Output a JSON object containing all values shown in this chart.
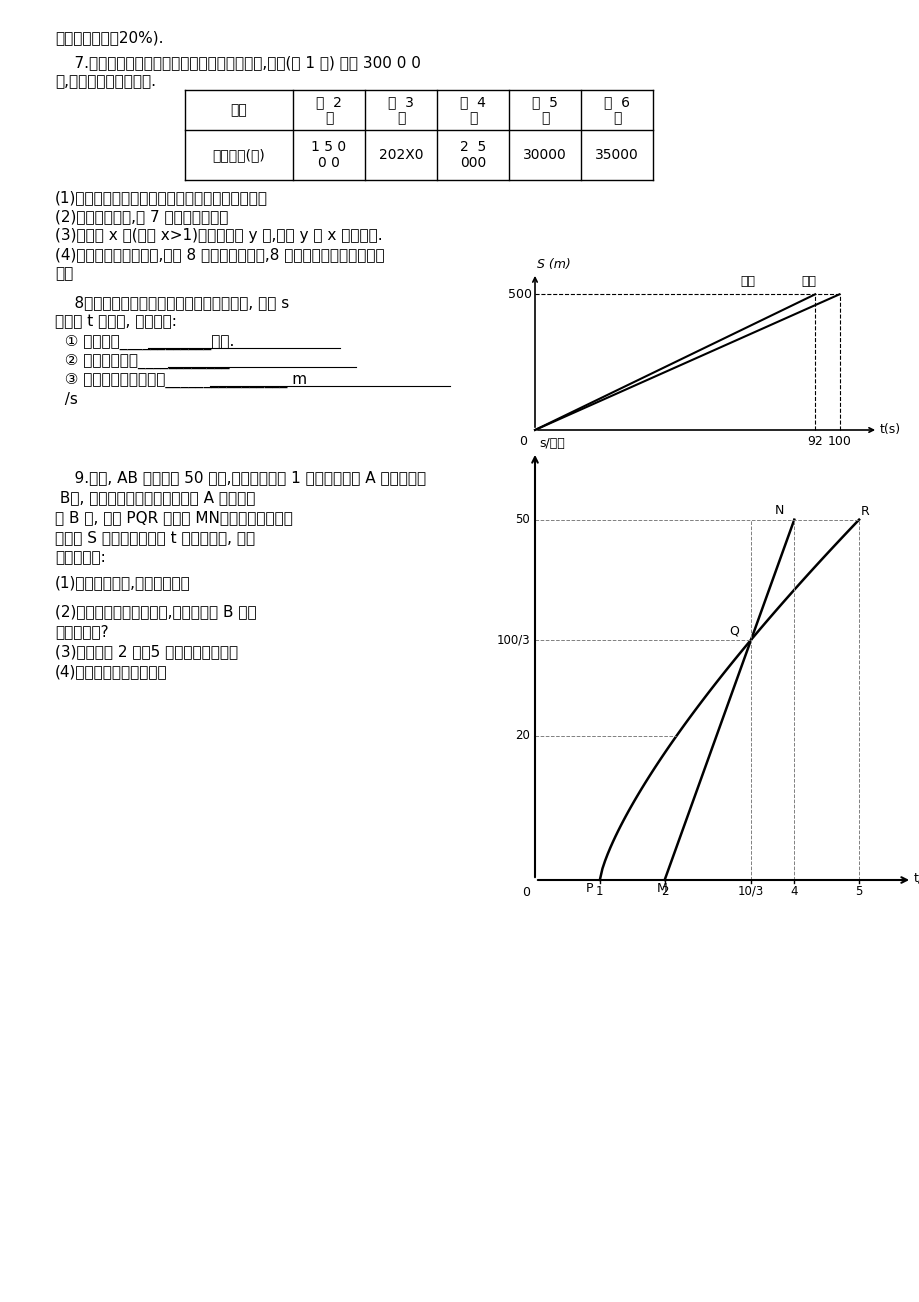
{
  "bg_color": "#ffffff",
  "line1": "要交纳所得税的20%).",
  "q7_line1": "    7.某居民小区按照分期付款的方式售房购房时,首期(第 1 年) 付款 300 0 0",
  "q7_line2": "元,以后每年付款如下表.",
  "table_header": [
    "年份",
    "第  2\n年",
    "第  3\n年",
    "第  4\n年",
    "第  5\n年",
    "第  6\n年"
  ],
  "table_row1": [
    "交付房款(元)",
    "1 5 0\n0 0",
    "202X0",
    "2  5\n000",
    "30000",
    "35000"
  ],
  "q7_sub1": "(1)上表反映了哪两个变量之间的关系哪个是自变量",
  "q7_sub2": "(2)根据表格推测,第 7 年应付款多少元",
  "q7_sub3": "(3)如果第 x 年(其中 x>1)应付房款为 y 元,写出 y 与 x 的关系式.",
  "q7_sub4": "(4)小明家购得一套住房,到第 8 年恰好付清房款,8 年来他家一共交付房款多",
  "q7_sub5": "少元",
  "q8_text1": "    8、如图这是李明、王平两人在一次赛跑中, 路程 s",
  "q8_text2": "与时间 t 的关系, 读图填空:",
  "q8_sub1": "  ① 这是一次____________赛跑.",
  "q8_sub2": "  ② 先到终点的是____________",
  "q8_sub3": "  ③ 王平在赛跑中速度是________________ m",
  "q8_sub4": "  /s",
  "q9_text1": "    9.如图, AB 两地相距 50 千米,甲于某日下午 1 时骑自行车从 A 地出发驶往",
  "q9_text2": " B地, 乙也于同日下午骑摩托车从 A 地出发驶",
  "q9_text3": "往 B 地, 图中 PQR 和线段 MN分别表示甲和乙所",
  "q9_text4": "行驶的 S 与该日下午时间 t 之间的关系, 试根",
  "q9_text5": "据图形回答:",
  "q9_sub1": "(1)甲出发几小时,乙才开始出发",
  "q9_sub3": "(2)乙行駆多少分钟赶上甲,这时两人离 B 地还",
  "q9_sub4": "有多少千米?",
  "q9_sub5": "(3)甲从下午 2 时到5 时的速度是多少？",
  "q9_sub6": "(4)乙行駆的速度是多少？"
}
